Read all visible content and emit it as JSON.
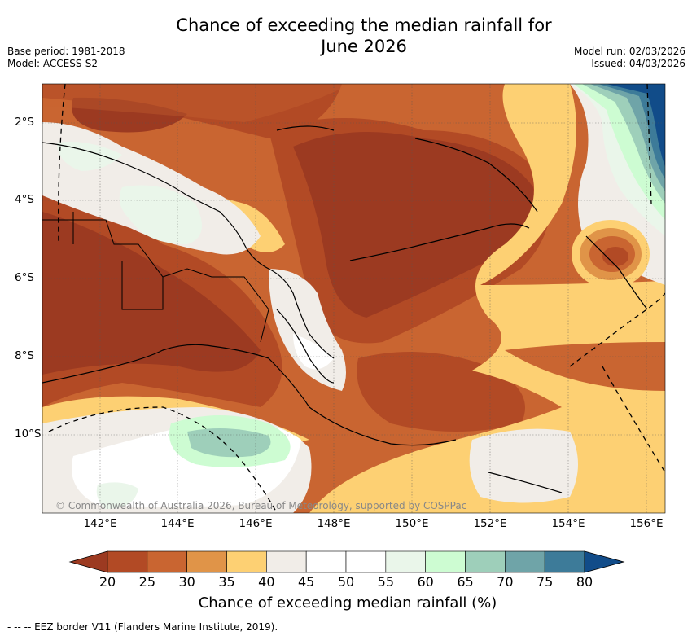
{
  "header": {
    "title_line1": "Chance of exceeding the median rainfall for",
    "title_line2": "June 2026",
    "base_period": "Base period: 1981-2018",
    "model": "Model: ACCESS-S2",
    "model_run": "Model run: 02/03/2026",
    "issued": "Issued: 04/03/2026"
  },
  "map": {
    "copyright": "© Commonwealth of Australia 2026, Bureau of Meteorology, supported by COSPPac",
    "lat_labels": [
      "2°S",
      "4°S",
      "6°S",
      "8°S",
      "10°S"
    ],
    "lon_labels": [
      "142°E",
      "144°E",
      "146°E",
      "148°E",
      "150°E",
      "152°E",
      "154°E",
      "156°E"
    ]
  },
  "colorbar": {
    "ticks": [
      "20",
      "25",
      "30",
      "35",
      "40",
      "45",
      "50",
      "55",
      "60",
      "65",
      "70",
      "75",
      "80"
    ],
    "colors": [
      "#9c3a21",
      "#b24a25",
      "#c96531",
      "#e09448",
      "#fdd073",
      "#f1ede8",
      "#ffffff",
      "#ffffff",
      "#eaf6ea",
      "#cdfcd2",
      "#9ecfba",
      "#6fa4a8",
      "#3d7b99",
      "#114c89"
    ],
    "title": "Chance of exceeding median rainfall (%)"
  },
  "footer": {
    "eez_note": "- -- -- EEZ border V11 (Flanders Marine Institute, 2019)."
  }
}
